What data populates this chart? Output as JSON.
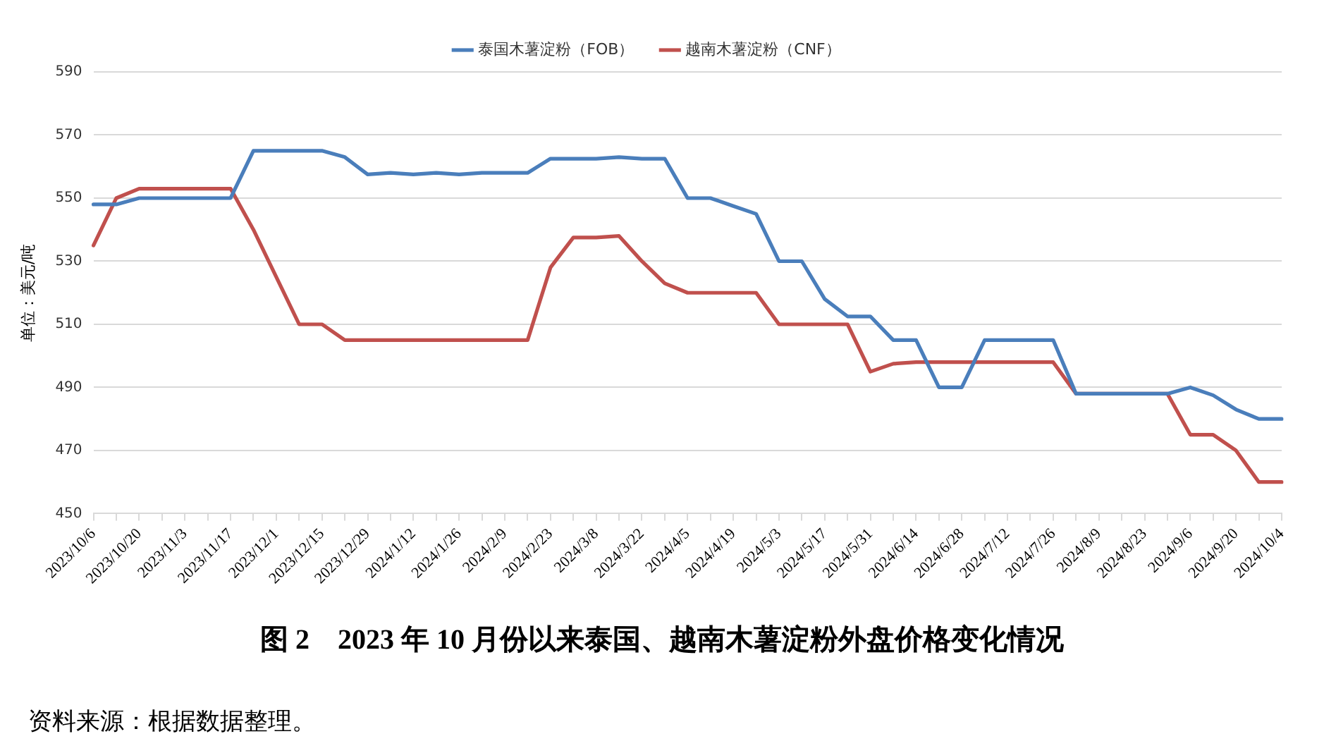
{
  "chart_data": {
    "type": "line",
    "title": "图 2　2023 年 10 月份以来泰国、越南木薯淀粉外盘价格变化情况",
    "ylabel": "单位：美元/吨",
    "annotations": [
      "资料来源：根据数据整理。"
    ],
    "categories": [
      "2023/10/6",
      null,
      "2023/10/20",
      null,
      "2023/11/3",
      null,
      "2023/11/17",
      null,
      "2023/12/1",
      null,
      "2023/12/15",
      null,
      "2023/12/29",
      null,
      "2024/1/12",
      null,
      "2024/1/26",
      null,
      "2024/2/9",
      null,
      "2024/2/23",
      null,
      "2024/3/8",
      null,
      "2024/3/22",
      null,
      "2024/4/5",
      null,
      "2024/4/19",
      null,
      "2024/5/3",
      null,
      "2024/5/17",
      null,
      "2024/5/31",
      null,
      "2024/6/14",
      null,
      "2024/6/28",
      null,
      "2024/7/12",
      null,
      "2024/7/26",
      null,
      "2024/8/9",
      null,
      "2024/8/23",
      null,
      "2024/9/6",
      null,
      "2024/9/20",
      null,
      "2024/10/4"
    ],
    "series": [
      {
        "name": "泰国木薯淀粉（FOB）",
        "color": "#4a7ebb",
        "values": [
          548,
          548,
          550,
          550,
          550,
          550,
          550,
          565,
          565,
          565,
          565,
          563,
          557.5,
          558,
          557.5,
          558,
          557.5,
          558,
          558,
          558,
          562.5,
          562.5,
          562.5,
          563,
          562.5,
          562.5,
          550,
          550,
          547.5,
          545,
          530,
          530,
          518,
          512.5,
          512.5,
          505,
          505,
          490,
          490,
          505,
          505,
          505,
          505,
          488,
          488,
          488,
          488,
          488,
          490,
          487.5,
          483,
          480,
          480
        ]
      },
      {
        "name": "越南木薯淀粉（CNF）",
        "color": "#c0504d",
        "values": [
          535,
          550,
          553,
          553,
          553,
          553,
          553,
          540,
          525,
          510,
          510,
          505,
          505,
          505,
          505,
          505,
          505,
          505,
          505,
          505,
          528,
          537.5,
          537.5,
          538,
          530,
          523,
          520,
          520,
          520,
          520,
          510,
          510,
          510,
          510,
          495,
          497.5,
          498,
          498,
          498,
          498,
          498,
          498,
          498,
          488,
          488,
          488,
          488,
          488,
          475,
          475,
          470,
          460,
          460
        ]
      }
    ],
    "ylim": [
      450,
      590
    ],
    "yticks": [
      450,
      470,
      490,
      510,
      530,
      550,
      570,
      590
    ],
    "grid": "y",
    "legend": "top",
    "marker": "none",
    "line_style": "solid"
  }
}
